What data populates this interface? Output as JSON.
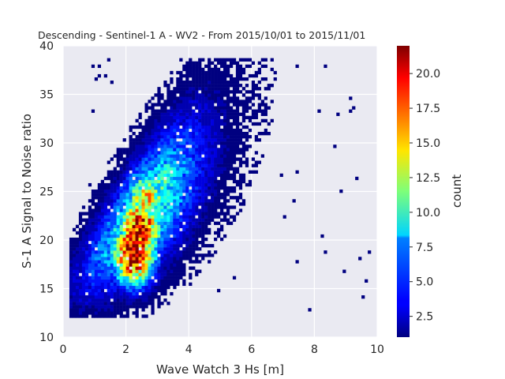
{
  "chart_data": {
    "type": "heatmap",
    "title": "Descending - Sentinel-1 A - WV2 - From 2015/10/01 to 2015/11/01",
    "xlabel": "Wave Watch 3 Hs [m]",
    "ylabel": "S-1 A Signal to Noise ratio",
    "xlim": [
      0,
      10
    ],
    "ylim": [
      10,
      40
    ],
    "x_ticks": [
      "0",
      "2",
      "4",
      "6",
      "8",
      "10"
    ],
    "y_ticks": [
      "10",
      "15",
      "20",
      "25",
      "30",
      "35",
      "40"
    ],
    "bin_width_x": 0.1,
    "bin_width_y": 0.33,
    "colormap": "jet",
    "background": "#eaeaf2",
    "grid": true,
    "colorbar": {
      "label": "count",
      "range": [
        1,
        22
      ],
      "ticks": [
        "2.5",
        "5.0",
        "7.5",
        "10.0",
        "12.5",
        "15.0",
        "17.5",
        "20.0"
      ]
    },
    "density_cores": [
      {
        "x": 2.2,
        "y": 18.5,
        "peak_count": 22
      },
      {
        "x": 2.4,
        "y": 21.0,
        "peak_count": 20
      },
      {
        "x": 2.6,
        "y": 24.0,
        "peak_count": 14
      }
    ]
  }
}
